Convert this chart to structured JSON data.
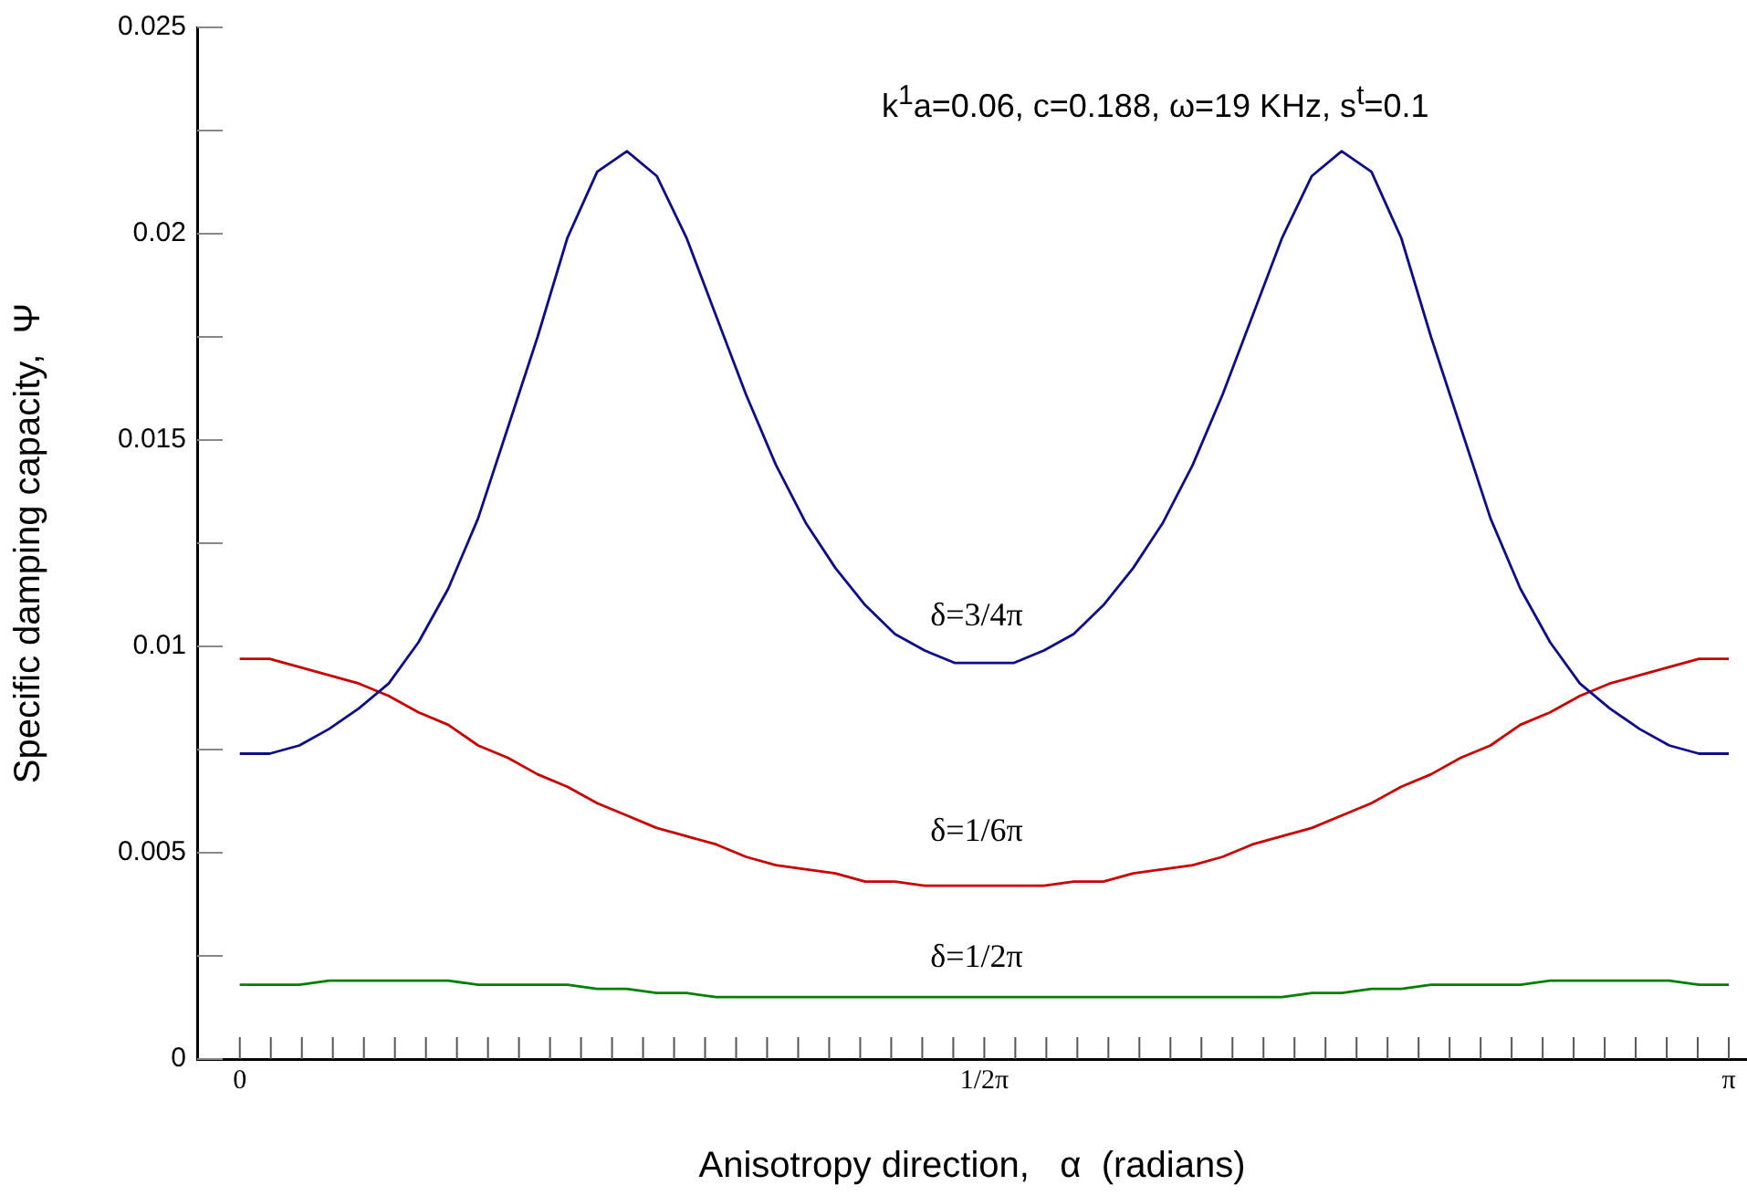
{
  "chart_data": {
    "type": "line",
    "xlabel": "Anisotropy direction,   α  (radians)",
    "ylabel": "Specific damping capacity,  Ψ",
    "annotations": [
      "k$^{1}$a=0.06, c=0.188, ω=19 KHz, s$^{t}$=0.1",
      "δ=3/4π",
      "δ=1/6π",
      "δ=1/2π"
    ],
    "x": [
      0,
      0.0628,
      0.1257,
      0.1885,
      0.2513,
      0.3142,
      0.377,
      0.4398,
      0.5027,
      0.5655,
      0.6283,
      0.6912,
      0.754,
      0.8168,
      0.8796,
      0.9425,
      1.0053,
      1.0681,
      1.131,
      1.1938,
      1.2566,
      1.3195,
      1.3823,
      1.4451,
      1.508,
      1.5708,
      1.6336,
      1.6965,
      1.7593,
      1.8221,
      1.885,
      1.9478,
      2.0106,
      2.0735,
      2.1363,
      2.1991,
      2.2619,
      2.3248,
      2.3876,
      2.4504,
      2.5133,
      2.5761,
      2.6389,
      2.7018,
      2.7646,
      2.8274,
      2.8903,
      2.9531,
      3.0159,
      3.0788,
      3.1416
    ],
    "series": [
      {
        "color": "#0c0c8c",
        "values": [
          0.0074,
          0.0074,
          0.0076,
          0.008,
          0.0085,
          0.0091,
          0.0101,
          0.0114,
          0.0131,
          0.0153,
          0.0175,
          0.0199,
          0.0215,
          0.022,
          0.0214,
          0.0199,
          0.018,
          0.0161,
          0.0144,
          0.013,
          0.0119,
          0.011,
          0.0103,
          0.0099,
          0.0096,
          0.0096,
          0.0096,
          0.0099,
          0.0103,
          0.011,
          0.0119,
          0.013,
          0.0144,
          0.0161,
          0.018,
          0.0199,
          0.0214,
          0.022,
          0.0215,
          0.0199,
          0.0175,
          0.0153,
          0.0131,
          0.0114,
          0.0101,
          0.0091,
          0.0085,
          0.008,
          0.0076,
          0.0074,
          0.0074
        ]
      },
      {
        "color": "#cc0000",
        "values": [
          0.0097,
          0.0097,
          0.0095,
          0.0093,
          0.0091,
          0.0088,
          0.0084,
          0.0081,
          0.0076,
          0.0073,
          0.0069,
          0.0066,
          0.0062,
          0.0059,
          0.0056,
          0.0054,
          0.0052,
          0.0049,
          0.0047,
          0.0046,
          0.0045,
          0.0043,
          0.0043,
          0.0042,
          0.0042,
          0.0042,
          0.0042,
          0.0042,
          0.0043,
          0.0043,
          0.0045,
          0.0046,
          0.0047,
          0.0049,
          0.0052,
          0.0054,
          0.0056,
          0.0059,
          0.0062,
          0.0066,
          0.0069,
          0.0073,
          0.0076,
          0.0081,
          0.0084,
          0.0088,
          0.0091,
          0.0093,
          0.0095,
          0.0097,
          0.0097
        ]
      },
      {
        "color": "#008000",
        "values": [
          0.0018,
          0.0018,
          0.0018,
          0.0019,
          0.0019,
          0.0019,
          0.0019,
          0.0019,
          0.0018,
          0.0018,
          0.0018,
          0.0018,
          0.0017,
          0.0017,
          0.0016,
          0.0016,
          0.0015,
          0.0015,
          0.0015,
          0.0015,
          0.0015,
          0.0015,
          0.0015,
          0.0015,
          0.0015,
          0.0015,
          0.0015,
          0.0015,
          0.0015,
          0.0015,
          0.0015,
          0.0015,
          0.0015,
          0.0015,
          0.0015,
          0.0015,
          0.0016,
          0.0016,
          0.0017,
          0.0017,
          0.0018,
          0.0018,
          0.0018,
          0.0018,
          0.0019,
          0.0019,
          0.0019,
          0.0019,
          0.0019,
          0.0018,
          0.0018
        ]
      }
    ],
    "xlim": [
      -0.09,
      3.18
    ],
    "ylim": [
      0,
      0.025
    ],
    "xticks": [
      {
        "value": 0,
        "label": "0"
      },
      {
        "value": 0.0654,
        "label": null
      },
      {
        "value": 0.1309,
        "label": null
      },
      {
        "value": 0.1963,
        "label": null
      },
      {
        "value": 0.2618,
        "label": null
      },
      {
        "value": 0.3272,
        "label": null
      },
      {
        "value": 0.3927,
        "label": null
      },
      {
        "value": 0.4581,
        "label": null
      },
      {
        "value": 0.5236,
        "label": null
      },
      {
        "value": 0.589,
        "label": null
      },
      {
        "value": 0.6545,
        "label": null
      },
      {
        "value": 0.7199,
        "label": null
      },
      {
        "value": 0.7854,
        "label": null
      },
      {
        "value": 0.8508,
        "label": null
      },
      {
        "value": 0.9163,
        "label": null
      },
      {
        "value": 0.9817,
        "label": null
      },
      {
        "value": 1.0472,
        "label": null
      },
      {
        "value": 1.1126,
        "label": null
      },
      {
        "value": 1.1781,
        "label": null
      },
      {
        "value": 1.2435,
        "label": null
      },
      {
        "value": 1.309,
        "label": null
      },
      {
        "value": 1.3744,
        "label": null
      },
      {
        "value": 1.4399,
        "label": null
      },
      {
        "value": 1.5053,
        "label": null
      },
      {
        "value": 1.5708,
        "label": "1/2π"
      },
      {
        "value": 1.6362,
        "label": null
      },
      {
        "value": 1.7017,
        "label": null
      },
      {
        "value": 1.7671,
        "label": null
      },
      {
        "value": 1.8326,
        "label": null
      },
      {
        "value": 1.898,
        "label": null
      },
      {
        "value": 1.9635,
        "label": null
      },
      {
        "value": 2.0289,
        "label": null
      },
      {
        "value": 2.0944,
        "label": null
      },
      {
        "value": 2.1598,
        "label": null
      },
      {
        "value": 2.2253,
        "label": null
      },
      {
        "value": 2.2907,
        "label": null
      },
      {
        "value": 2.3562,
        "label": null
      },
      {
        "value": 2.4216,
        "label": null
      },
      {
        "value": 2.4871,
        "label": null
      },
      {
        "value": 2.5525,
        "label": null
      },
      {
        "value": 2.618,
        "label": null
      },
      {
        "value": 2.6834,
        "label": null
      },
      {
        "value": 2.7489,
        "label": null
      },
      {
        "value": 2.8143,
        "label": null
      },
      {
        "value": 2.8798,
        "label": null
      },
      {
        "value": 2.9452,
        "label": null
      },
      {
        "value": 3.0107,
        "label": null
      },
      {
        "value": 3.0761,
        "label": null
      },
      {
        "value": 3.1416,
        "label": "π"
      }
    ],
    "yticks": [
      0,
      {
        "value": 0.0025,
        "label": null
      },
      0.005,
      {
        "value": 0.0075,
        "label": null
      },
      0.01,
      {
        "value": 0.0125,
        "label": null
      },
      0.015,
      {
        "value": 0.0175,
        "label": null
      },
      0.02,
      {
        "value": 0.0225,
        "label": null
      },
      0.025
    ],
    "grid": false,
    "legend": false,
    "marker": "none",
    "line_style": "solid"
  }
}
